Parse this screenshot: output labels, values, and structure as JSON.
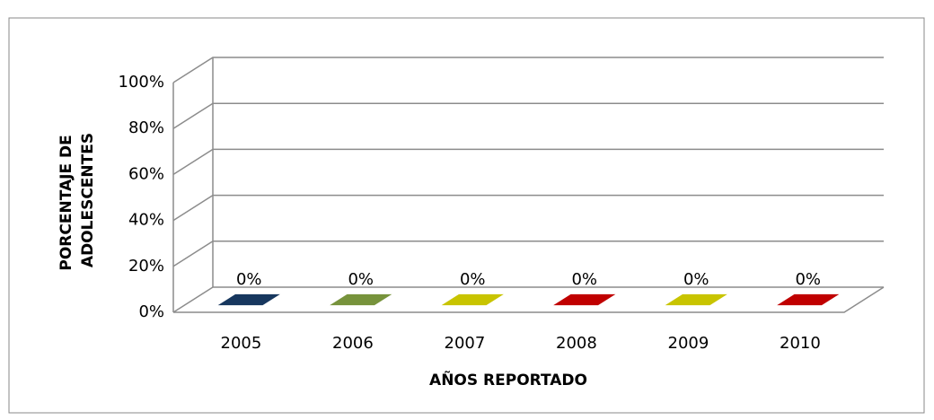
{
  "chart_data": {
    "type": "bar3d",
    "ylabel": [
      "PORCENTAJE DE",
      "ADOLESCENTES"
    ],
    "xlabel": "AÑOS REPORTADO",
    "categories": [
      "2005",
      "2006",
      "2007",
      "2008",
      "2009",
      "2010"
    ],
    "values": [
      0,
      0,
      0,
      0,
      0,
      0
    ],
    "value_labels": [
      "0%",
      "0%",
      "0%",
      "0%",
      "0%",
      "0%"
    ],
    "colors": [
      "#17375e",
      "#77933c",
      "#c8c400",
      "#c00000",
      "#c8c400",
      "#c00000"
    ],
    "ylim": [
      0,
      100
    ],
    "yticks": [
      {
        "value": 0,
        "label": "0%"
      },
      {
        "value": 20,
        "label": "20%"
      },
      {
        "value": 40,
        "label": "40%"
      },
      {
        "value": 60,
        "label": "60%"
      },
      {
        "value": 80,
        "label": "80%"
      },
      {
        "value": 100,
        "label": "100%"
      }
    ],
    "grid": true
  }
}
